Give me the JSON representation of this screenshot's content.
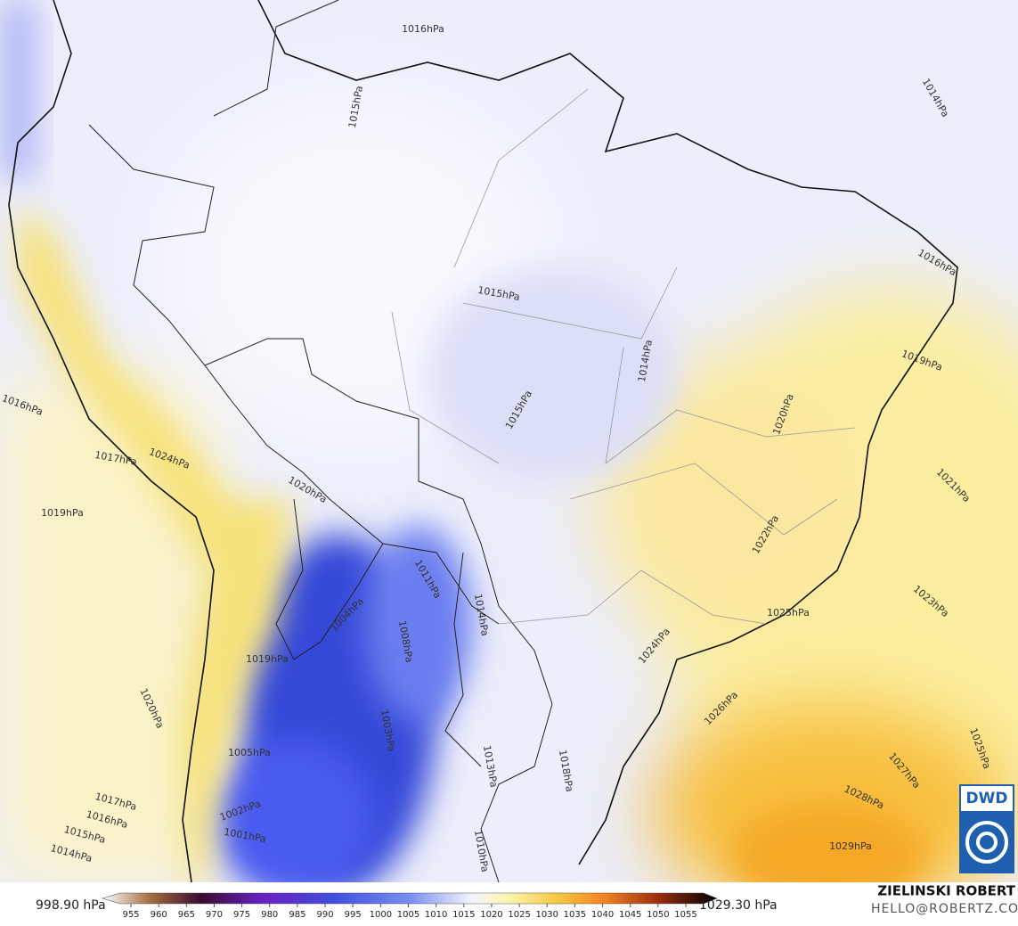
{
  "map": {
    "isobar_labels": [
      "1016hPa",
      "1015hPa",
      "1014hPa",
      "1015hPa",
      "1016hPa",
      "1019hPa",
      "1014hPa",
      "1015hPa",
      "1016hPa",
      "1017hPa",
      "1024hPa",
      "1020hPa",
      "1021hPa",
      "1019hPa",
      "1020hPa",
      "1022hPa",
      "1023hPa",
      "1025hPa",
      "1011hPa",
      "1014hPa",
      "1004hPa",
      "1008hPa",
      "1019hPa",
      "1024hPa",
      "1020hPa",
      "1026hPa",
      "1025hPa",
      "1003hPa",
      "1005hPa",
      "1013hPa",
      "1018hPa",
      "1027hPa",
      "1028hPa",
      "1017hPa",
      "1016hPa",
      "1015hPa",
      "1014hPa",
      "1002hPa",
      "1001hPa",
      "1029hPa",
      "1010hPa"
    ],
    "colorbar": {
      "min_label": "998.90 hPa",
      "max_label": "1029.30 hPa",
      "ticks": [
        955,
        960,
        965,
        970,
        975,
        980,
        985,
        990,
        995,
        1000,
        1005,
        1010,
        1015,
        1020,
        1025,
        1030,
        1035,
        1040,
        1045,
        1050,
        1055
      ]
    },
    "credit": {
      "name": "ZIELINSKI ROBERT",
      "email": "HELLO@ROBERTZ.CO"
    },
    "logo": "DWD"
  }
}
